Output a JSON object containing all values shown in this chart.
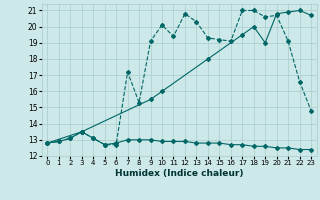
{
  "title": "",
  "xlabel": "Humidex (Indice chaleur)",
  "bg_color": "#cce8e8",
  "grid_color": "#aacccc",
  "line_color": "#006666",
  "xlim": [
    -0.5,
    23.5
  ],
  "ylim": [
    12,
    21.4
  ],
  "xticks": [
    0,
    1,
    2,
    3,
    4,
    5,
    6,
    7,
    8,
    9,
    10,
    11,
    12,
    13,
    14,
    15,
    16,
    17,
    18,
    19,
    20,
    21,
    22,
    23
  ],
  "yticks": [
    12,
    13,
    14,
    15,
    16,
    17,
    18,
    19,
    20,
    21
  ],
  "line1_x": [
    0,
    1,
    2,
    3,
    4,
    5,
    6,
    7,
    8,
    9,
    10,
    11,
    12,
    13,
    14,
    15,
    16,
    17,
    18,
    19,
    20,
    21,
    22,
    23
  ],
  "line1_y": [
    12.8,
    12.9,
    13.1,
    13.5,
    13.1,
    12.7,
    12.8,
    13.0,
    13.0,
    13.0,
    12.9,
    12.9,
    12.9,
    12.8,
    12.8,
    12.8,
    12.7,
    12.7,
    12.6,
    12.6,
    12.5,
    12.5,
    12.4,
    12.4
  ],
  "line2_x": [
    0,
    1,
    2,
    3,
    4,
    5,
    6,
    7,
    8,
    9,
    10,
    11,
    12,
    13,
    14,
    15,
    16,
    17,
    18,
    19,
    20,
    21,
    22,
    23
  ],
  "line2_y": [
    12.8,
    12.9,
    13.1,
    13.5,
    13.1,
    12.7,
    12.7,
    17.2,
    15.3,
    19.1,
    20.1,
    19.4,
    20.8,
    20.3,
    19.3,
    19.2,
    19.1,
    21.0,
    21.0,
    20.6,
    20.7,
    19.1,
    16.6,
    14.8
  ],
  "line3_x": [
    0,
    3,
    9,
    10,
    14,
    17,
    18,
    19,
    20,
    21,
    22,
    23
  ],
  "line3_y": [
    12.8,
    13.5,
    15.5,
    16.0,
    18.0,
    19.5,
    20.0,
    19.0,
    20.8,
    20.9,
    21.0,
    20.7
  ]
}
